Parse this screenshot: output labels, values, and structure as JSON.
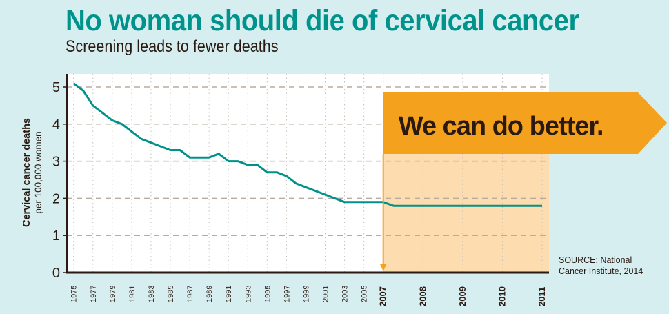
{
  "title": "No woman should die of cervical cancer",
  "subtitle": "Screening leads to fewer deaths",
  "source": [
    "SOURCE: National",
    "Cancer Institute, 2014"
  ],
  "callout": "We can do better.",
  "colors": {
    "background": "#d6eef0",
    "title": "#00938c",
    "line": "#00928a",
    "callout": "#f4a11e",
    "highlight": "#fddcb0",
    "axis": "#2a1a12"
  },
  "chart_data": {
    "type": "line",
    "title": "No woman should die of cervical cancer",
    "subtitle": "Screening leads to fewer deaths",
    "ylabel": "Cervical cancer deaths",
    "ylabel_sub": "per 100,000 women",
    "ylim": [
      0,
      5
    ],
    "yticks": [
      "0",
      "1",
      "2",
      "3",
      "4",
      "5"
    ],
    "xticks": [
      "1975",
      "1977",
      "1979",
      "1981",
      "1983",
      "1985",
      "1987",
      "1989",
      "1991",
      "1993",
      "1995",
      "1997",
      "1999",
      "2001",
      "2003",
      "2005",
      "2007",
      "2008",
      "2009",
      "2010",
      "2011"
    ],
    "bold_xticks": [
      "2007",
      "2008",
      "2009",
      "2010",
      "2011"
    ],
    "highlight_from": 2007,
    "grid": true,
    "x": [
      1975,
      1976,
      1977,
      1978,
      1979,
      1980,
      1981,
      1982,
      1983,
      1984,
      1985,
      1986,
      1987,
      1988,
      1989,
      1990,
      1991,
      1992,
      1993,
      1994,
      1995,
      1996,
      1997,
      1998,
      1999,
      2000,
      2001,
      2002,
      2003,
      2004,
      2005,
      2006,
      2007,
      2008,
      2009,
      2010,
      2011
    ],
    "values": [
      5.1,
      4.9,
      4.5,
      4.3,
      4.1,
      4.0,
      3.8,
      3.6,
      3.5,
      3.4,
      3.3,
      3.3,
      3.1,
      3.1,
      3.1,
      3.2,
      3.0,
      3.0,
      2.9,
      2.9,
      2.7,
      2.7,
      2.6,
      2.4,
      2.3,
      2.2,
      2.1,
      2.0,
      1.9,
      1.9,
      1.9,
      1.9,
      1.9,
      1.8,
      1.8,
      1.8,
      1.8
    ]
  }
}
